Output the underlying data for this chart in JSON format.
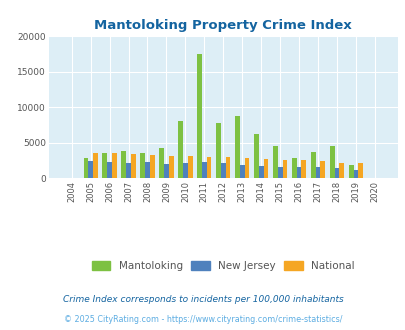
{
  "title": "Mantoloking Property Crime Index",
  "years": [
    2004,
    2005,
    2006,
    2007,
    2008,
    2009,
    2010,
    2011,
    2012,
    2013,
    2014,
    2015,
    2016,
    2017,
    2018,
    2019,
    2020
  ],
  "mantoloking": [
    0,
    2800,
    3500,
    3900,
    3600,
    4200,
    8000,
    17500,
    7800,
    8800,
    6300,
    4500,
    2900,
    3700,
    4500,
    1900,
    0
  ],
  "new_jersey": [
    0,
    2400,
    2300,
    2200,
    2300,
    2000,
    2100,
    2300,
    2100,
    1900,
    1700,
    1600,
    1600,
    1600,
    1400,
    1200,
    0
  ],
  "national": [
    0,
    3600,
    3600,
    3400,
    3300,
    3100,
    3100,
    3000,
    3000,
    2900,
    2700,
    2600,
    2500,
    2400,
    2200,
    2100,
    0
  ],
  "mantoloking_color": "#7dc142",
  "new_jersey_color": "#4f81bd",
  "national_color": "#f5a623",
  "bg_color": "#ddeef6",
  "ylim": [
    0,
    20000
  ],
  "yticks": [
    0,
    5000,
    10000,
    15000,
    20000
  ],
  "ytick_labels": [
    "0",
    "5000",
    "10000",
    "15000",
    "20000"
  ],
  "subtitle": "Crime Index corresponds to incidents per 100,000 inhabitants",
  "footer": "© 2025 CityRating.com - https://www.cityrating.com/crime-statistics/",
  "title_color": "#1464a0",
  "subtitle_color": "#1464a0",
  "footer_color": "#5dade2",
  "bar_width": 0.25
}
